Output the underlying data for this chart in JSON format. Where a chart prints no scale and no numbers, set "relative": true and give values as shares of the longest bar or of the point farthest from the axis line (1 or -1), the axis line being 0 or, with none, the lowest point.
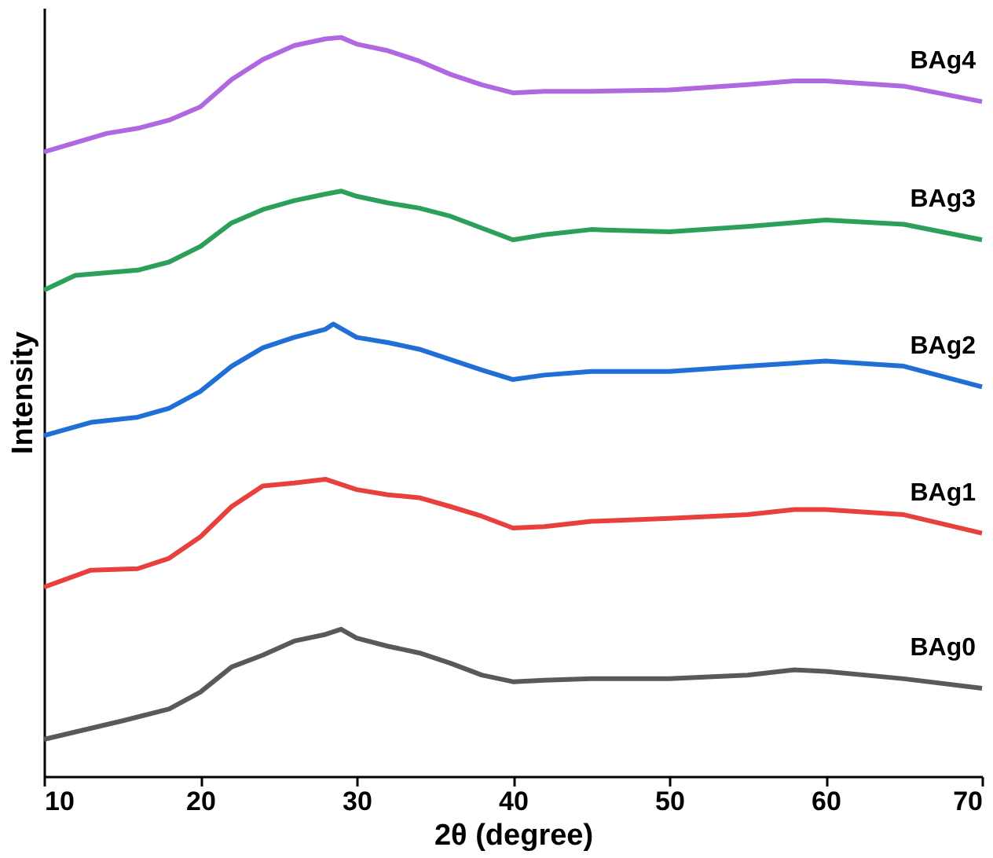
{
  "chart_data": {
    "type": "line",
    "xlabel": "2θ (degree)",
    "ylabel": "Intensity",
    "relative": true,
    "xlim": [
      10,
      70
    ],
    "xticks": [
      10,
      20,
      30,
      40,
      50,
      60,
      70
    ],
    "grid": false,
    "legend": false,
    "marker": "none",
    "line_style": "solid",
    "series": [
      {
        "name": "BAg0",
        "color": "#595959",
        "x": [
          10,
          15,
          18,
          20,
          22,
          24,
          26,
          28,
          29,
          30,
          32,
          34,
          36,
          38,
          40,
          42,
          45,
          50,
          55,
          58,
          60,
          65,
          70
        ],
        "values": [
          0.05,
          0.075,
          0.091,
          0.114,
          0.148,
          0.164,
          0.183,
          0.192,
          0.199,
          0.187,
          0.176,
          0.167,
          0.153,
          0.137,
          0.128,
          0.13,
          0.132,
          0.132,
          0.137,
          0.144,
          0.142,
          0.132,
          0.119
        ]
      },
      {
        "name": "BAg1",
        "color": "#e8403c",
        "x": [
          10,
          13,
          16,
          18,
          20,
          22,
          24,
          26,
          28,
          30,
          32,
          34,
          36,
          38,
          40,
          42,
          45,
          50,
          55,
          58,
          60,
          65,
          70
        ],
        "values": [
          0.256,
          0.279,
          0.281,
          0.295,
          0.324,
          0.365,
          0.393,
          0.397,
          0.402,
          0.388,
          0.381,
          0.377,
          0.365,
          0.352,
          0.336,
          0.338,
          0.345,
          0.349,
          0.354,
          0.361,
          0.361,
          0.354,
          0.329
        ]
      },
      {
        "name": "BAg2",
        "color": "#1f6fd6",
        "x": [
          10,
          13,
          16,
          18,
          20,
          22,
          24,
          26,
          28,
          28.5,
          30,
          32,
          34,
          36,
          38,
          40,
          42,
          45,
          50,
          55,
          60,
          65,
          70
        ],
        "values": [
          0.461,
          0.479,
          0.486,
          0.498,
          0.521,
          0.555,
          0.58,
          0.594,
          0.605,
          0.612,
          0.594,
          0.587,
          0.578,
          0.564,
          0.55,
          0.537,
          0.543,
          0.548,
          0.548,
          0.555,
          0.562,
          0.555,
          0.527
        ]
      },
      {
        "name": "BAg3",
        "color": "#2ca05a",
        "x": [
          10,
          12,
          16,
          18,
          20,
          22,
          24,
          26,
          28,
          29,
          30,
          32,
          34,
          36,
          38,
          40,
          42,
          45,
          50,
          55,
          60,
          65,
          70
        ],
        "values": [
          0.658,
          0.678,
          0.685,
          0.696,
          0.717,
          0.749,
          0.767,
          0.779,
          0.788,
          0.792,
          0.785,
          0.776,
          0.769,
          0.758,
          0.742,
          0.726,
          0.733,
          0.74,
          0.737,
          0.744,
          0.753,
          0.747,
          0.726
        ]
      },
      {
        "name": "BAg4",
        "color": "#b068e0",
        "x": [
          10,
          14,
          16,
          18,
          20,
          22,
          24,
          26,
          28,
          29,
          30,
          32,
          34,
          36,
          38,
          40,
          42,
          45,
          50,
          55,
          58,
          60,
          65,
          70
        ],
        "values": [
          0.845,
          0.87,
          0.877,
          0.888,
          0.906,
          0.943,
          0.97,
          0.989,
          0.998,
          1,
          0.991,
          0.982,
          0.968,
          0.95,
          0.936,
          0.925,
          0.927,
          0.927,
          0.929,
          0.936,
          0.941,
          0.941,
          0.934,
          0.913
        ]
      }
    ]
  }
}
